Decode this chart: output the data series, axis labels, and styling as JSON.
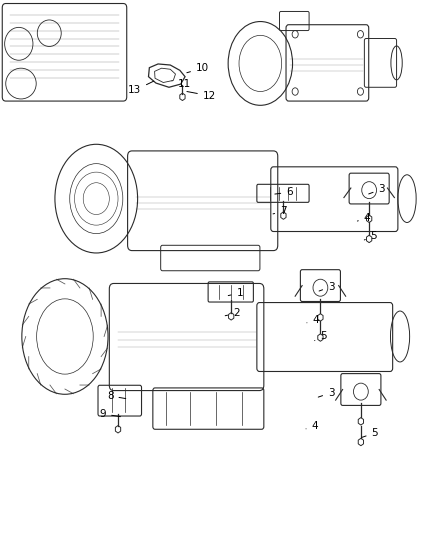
{
  "title": "",
  "background_color": "#ffffff",
  "fig_width": 4.38,
  "fig_height": 5.33,
  "dpi": 100,
  "diagram_color": "#2a2a2a",
  "line_color": "#333333",
  "text_color": "#000000"
}
